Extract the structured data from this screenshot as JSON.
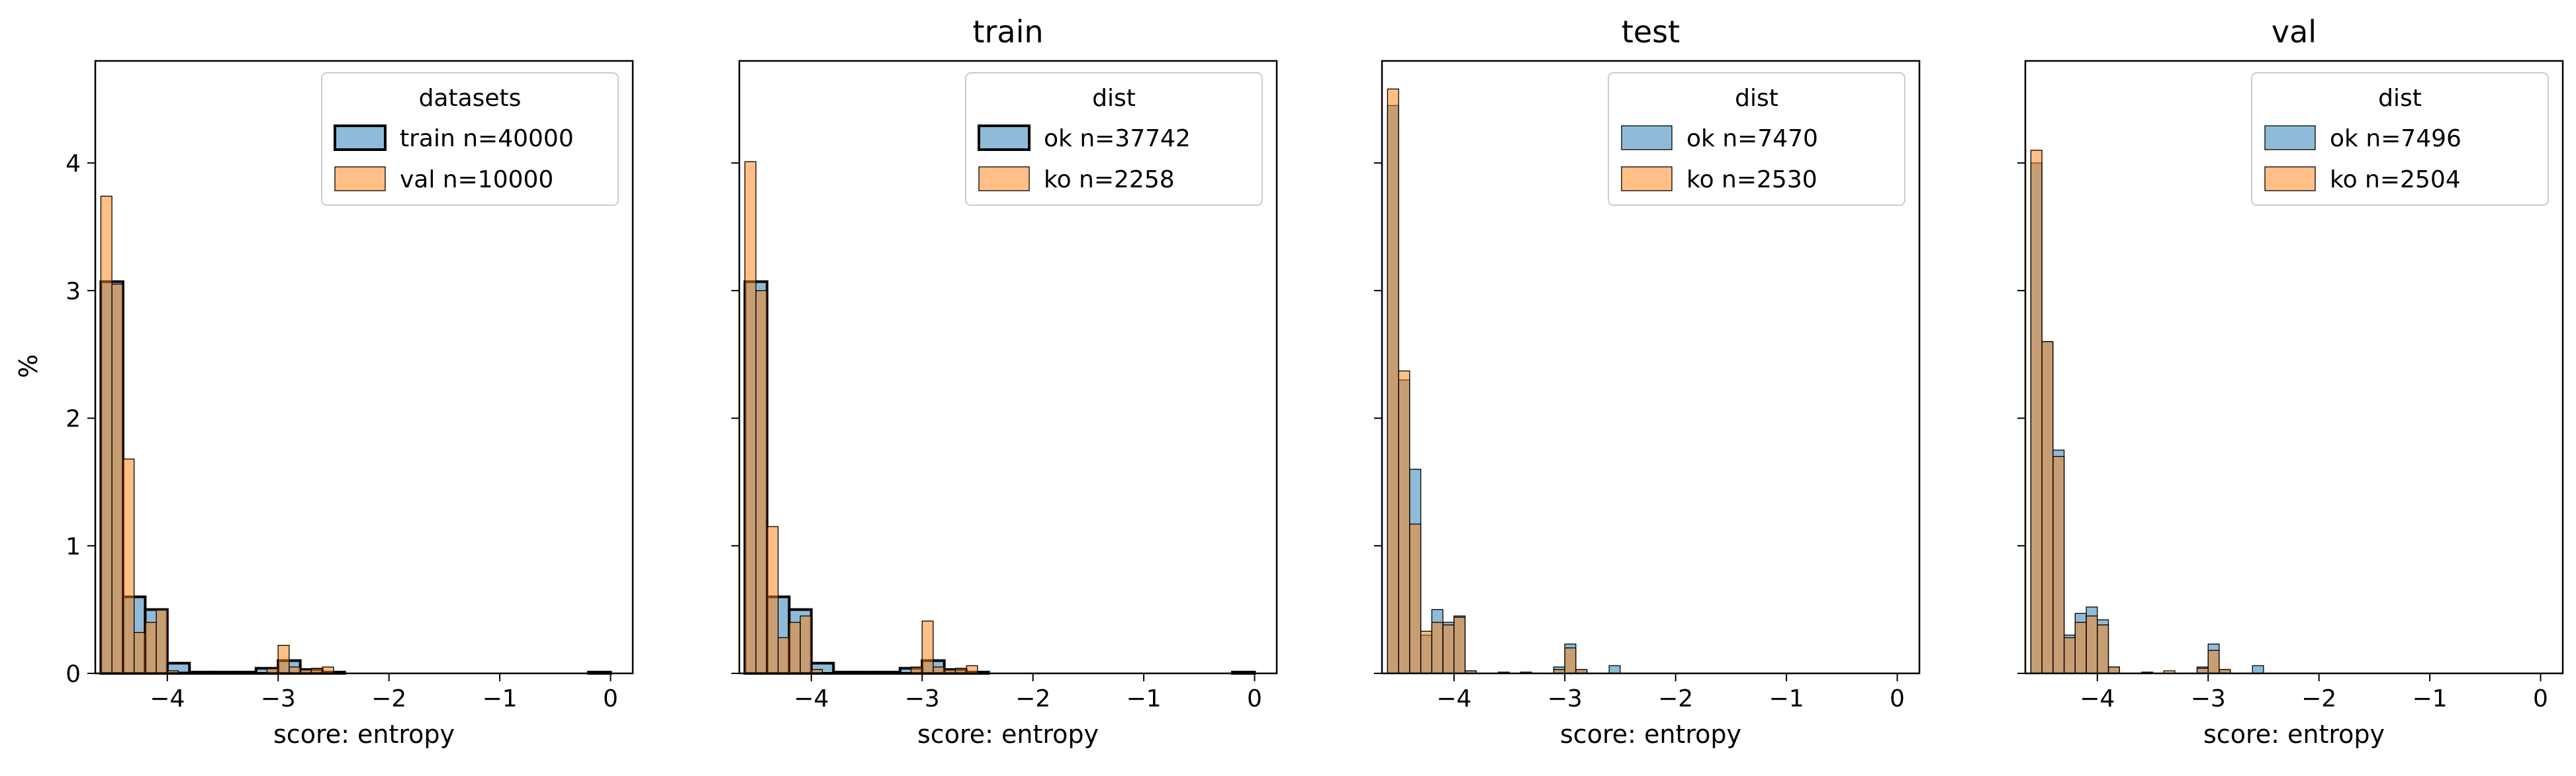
{
  "colors": {
    "blue": "#1f77b4",
    "orange": "#ff7f0e",
    "frame": "#000000"
  },
  "y_axis_label": "%",
  "chart_data": [
    {
      "type": "histogram",
      "title": "",
      "xlabel": "score: entropy",
      "ylabel": "%",
      "xlim": [
        -4.65,
        0.2
      ],
      "ylim": [
        0,
        4.8
      ],
      "xticks": [
        -4,
        -3,
        -2,
        -1,
        0
      ],
      "xtick_labels": [
        "−4",
        "−3",
        "−2",
        "−1",
        "0"
      ],
      "yticks": [
        0,
        1,
        2,
        3,
        4
      ],
      "ytick_labels": [
        "0",
        "1",
        "2",
        "3",
        "4"
      ],
      "legend": {
        "title": "datasets",
        "position": "top-right"
      },
      "series": [
        {
          "name": "train n=40000",
          "color": "#1f77b4",
          "edge": "thick",
          "bins": [
            [
              -4.6,
              -4.4,
              3.07
            ],
            [
              -4.4,
              -4.2,
              0.6
            ],
            [
              -4.2,
              -4.0,
              0.5
            ],
            [
              -4.0,
              -3.8,
              0.08
            ],
            [
              -3.8,
              -3.6,
              0.01
            ],
            [
              -3.6,
              -3.4,
              0.01
            ],
            [
              -3.4,
              -3.2,
              0.01
            ],
            [
              -3.2,
              -3.0,
              0.04
            ],
            [
              -3.0,
              -2.8,
              0.1
            ],
            [
              -2.8,
              -2.6,
              0.03
            ],
            [
              -2.6,
              -2.4,
              0.01
            ],
            [
              -0.2,
              0.0,
              0.01
            ]
          ]
        },
        {
          "name": "val n=10000",
          "color": "#ff7f0e",
          "edge": "thin",
          "bins": [
            [
              -4.6,
              -4.5,
              3.74
            ],
            [
              -4.5,
              -4.4,
              3.05
            ],
            [
              -4.4,
              -4.3,
              1.68
            ],
            [
              -4.3,
              -4.2,
              0.32
            ],
            [
              -4.2,
              -4.1,
              0.4
            ],
            [
              -4.1,
              -4.0,
              0.5
            ],
            [
              -4.0,
              -3.9,
              0.02
            ],
            [
              -3.9,
              -3.8,
              0.01
            ],
            [
              -3.1,
              -3.0,
              0.04
            ],
            [
              -3.0,
              -2.9,
              0.22
            ],
            [
              -2.9,
              -2.8,
              0.05
            ],
            [
              -2.8,
              -2.7,
              0.03
            ],
            [
              -2.7,
              -2.6,
              0.04
            ],
            [
              -2.6,
              -2.5,
              0.05
            ]
          ]
        }
      ]
    },
    {
      "type": "histogram",
      "title": "train",
      "xlabel": "score: entropy",
      "ylabel": "",
      "xlim": [
        -4.65,
        0.2
      ],
      "ylim": [
        0,
        4.8
      ],
      "xticks": [
        -4,
        -3,
        -2,
        -1,
        0
      ],
      "xtick_labels": [
        "−4",
        "−3",
        "−2",
        "−1",
        "0"
      ],
      "yticks": [
        0,
        1,
        2,
        3,
        4
      ],
      "ytick_labels": [],
      "legend": {
        "title": "dist",
        "position": "top-right"
      },
      "series": [
        {
          "name": "ok n=37742",
          "color": "#1f77b4",
          "edge": "thick",
          "bins": [
            [
              -4.6,
              -4.4,
              3.07
            ],
            [
              -4.4,
              -4.2,
              0.6
            ],
            [
              -4.2,
              -4.0,
              0.5
            ],
            [
              -4.0,
              -3.8,
              0.08
            ],
            [
              -3.8,
              -3.6,
              0.01
            ],
            [
              -3.6,
              -3.4,
              0.01
            ],
            [
              -3.4,
              -3.2,
              0.01
            ],
            [
              -3.2,
              -3.0,
              0.04
            ],
            [
              -3.0,
              -2.8,
              0.1
            ],
            [
              -2.8,
              -2.6,
              0.03
            ],
            [
              -2.6,
              -2.4,
              0.01
            ],
            [
              -0.2,
              0.0,
              0.01
            ]
          ]
        },
        {
          "name": "ko n=2258",
          "color": "#ff7f0e",
          "edge": "thin",
          "bins": [
            [
              -4.6,
              -4.5,
              4.01
            ],
            [
              -4.5,
              -4.4,
              3.0
            ],
            [
              -4.4,
              -4.3,
              1.15
            ],
            [
              -4.3,
              -4.2,
              0.28
            ],
            [
              -4.2,
              -4.1,
              0.4
            ],
            [
              -4.1,
              -4.0,
              0.45
            ],
            [
              -4.0,
              -3.9,
              0.03
            ],
            [
              -3.1,
              -3.0,
              0.05
            ],
            [
              -3.0,
              -2.9,
              0.41
            ],
            [
              -2.9,
              -2.8,
              0.05
            ],
            [
              -2.8,
              -2.7,
              0.03
            ],
            [
              -2.7,
              -2.6,
              0.04
            ],
            [
              -2.6,
              -2.5,
              0.06
            ]
          ]
        }
      ]
    },
    {
      "type": "histogram",
      "title": "test",
      "xlabel": "score: entropy",
      "ylabel": "",
      "xlim": [
        -4.65,
        0.2
      ],
      "ylim": [
        0,
        4.8
      ],
      "xticks": [
        -4,
        -3,
        -2,
        -1,
        0
      ],
      "xtick_labels": [
        "−4",
        "−3",
        "−2",
        "−1",
        "0"
      ],
      "yticks": [
        0,
        1,
        2,
        3,
        4
      ],
      "ytick_labels": [],
      "legend": {
        "title": "dist",
        "position": "top-right"
      },
      "series": [
        {
          "name": "ok n=7470",
          "color": "#1f77b4",
          "edge": "thin",
          "bins": [
            [
              -4.6,
              -4.5,
              4.45
            ],
            [
              -4.5,
              -4.4,
              2.3
            ],
            [
              -4.4,
              -4.3,
              1.6
            ],
            [
              -4.3,
              -4.2,
              0.3
            ],
            [
              -4.2,
              -4.1,
              0.5
            ],
            [
              -4.1,
              -4.0,
              0.4
            ],
            [
              -4.0,
              -3.9,
              0.45
            ],
            [
              -3.9,
              -3.8,
              0.02
            ],
            [
              -3.1,
              -3.0,
              0.05
            ],
            [
              -3.0,
              -2.9,
              0.23
            ],
            [
              -2.9,
              -2.8,
              0.03
            ],
            [
              -2.6,
              -2.5,
              0.06
            ]
          ]
        },
        {
          "name": "ko n=2530",
          "color": "#ff7f0e",
          "edge": "thin",
          "bins": [
            [
              -4.6,
              -4.5,
              4.58
            ],
            [
              -4.5,
              -4.4,
              2.37
            ],
            [
              -4.4,
              -4.3,
              1.17
            ],
            [
              -4.3,
              -4.2,
              0.33
            ],
            [
              -4.2,
              -4.1,
              0.4
            ],
            [
              -4.1,
              -4.0,
              0.38
            ],
            [
              -4.0,
              -3.9,
              0.44
            ],
            [
              -3.9,
              -3.8,
              0.02
            ],
            [
              -3.6,
              -3.5,
              0.01
            ],
            [
              -3.4,
              -3.3,
              0.01
            ],
            [
              -3.1,
              -3.0,
              0.03
            ],
            [
              -3.0,
              -2.9,
              0.2
            ],
            [
              -2.9,
              -2.8,
              0.03
            ]
          ]
        }
      ]
    },
    {
      "type": "histogram",
      "title": "val",
      "xlabel": "score: entropy",
      "ylabel": "",
      "xlim": [
        -4.65,
        0.2
      ],
      "ylim": [
        0,
        4.8
      ],
      "xticks": [
        -4,
        -3,
        -2,
        -1,
        0
      ],
      "xtick_labels": [
        "−4",
        "−3",
        "−2",
        "−1",
        "0"
      ],
      "yticks": [
        0,
        1,
        2,
        3,
        4
      ],
      "ytick_labels": [],
      "legend": {
        "title": "dist",
        "position": "top-right"
      },
      "series": [
        {
          "name": "ok n=7496",
          "color": "#1f77b4",
          "edge": "thin",
          "bins": [
            [
              -4.6,
              -4.5,
              4.0
            ],
            [
              -4.5,
              -4.4,
              2.6
            ],
            [
              -4.4,
              -4.3,
              1.75
            ],
            [
              -4.3,
              -4.2,
              0.3
            ],
            [
              -4.2,
              -4.1,
              0.47
            ],
            [
              -4.1,
              -4.0,
              0.52
            ],
            [
              -4.0,
              -3.9,
              0.42
            ],
            [
              -3.9,
              -3.8,
              0.05
            ],
            [
              -3.1,
              -3.0,
              0.05
            ],
            [
              -3.0,
              -2.9,
              0.23
            ],
            [
              -2.9,
              -2.8,
              0.03
            ],
            [
              -2.6,
              -2.5,
              0.06
            ]
          ]
        },
        {
          "name": "ko n=2504",
          "color": "#ff7f0e",
          "edge": "thin",
          "bins": [
            [
              -4.6,
              -4.5,
              4.1
            ],
            [
              -4.5,
              -4.4,
              2.6
            ],
            [
              -4.4,
              -4.3,
              1.7
            ],
            [
              -4.3,
              -4.2,
              0.28
            ],
            [
              -4.2,
              -4.1,
              0.4
            ],
            [
              -4.1,
              -4.0,
              0.45
            ],
            [
              -4.0,
              -3.9,
              0.38
            ],
            [
              -3.9,
              -3.8,
              0.05
            ],
            [
              -3.6,
              -3.5,
              0.01
            ],
            [
              -3.4,
              -3.3,
              0.02
            ],
            [
              -3.1,
              -3.0,
              0.04
            ],
            [
              -3.0,
              -2.9,
              0.18
            ],
            [
              -2.9,
              -2.8,
              0.03
            ]
          ]
        }
      ]
    }
  ]
}
